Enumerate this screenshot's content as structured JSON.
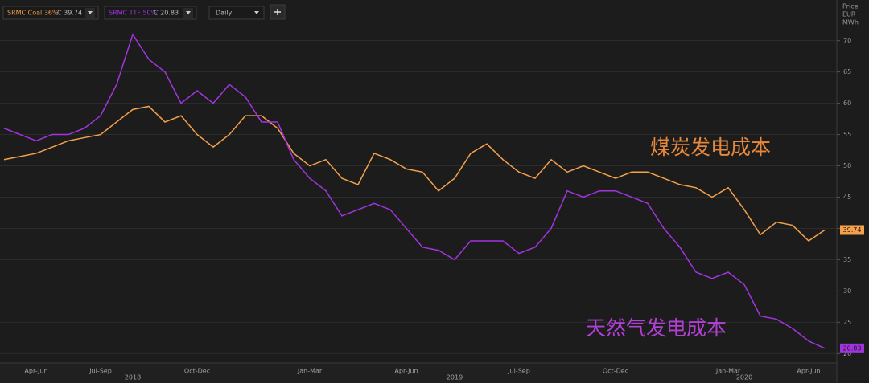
{
  "chart_data": {
    "type": "line",
    "interval": "Daily",
    "y_label_lines": [
      "Price",
      "EUR",
      "MWh"
    ],
    "annotations": [
      {
        "text": "煤炭发电成本",
        "color": "#e8883a"
      },
      {
        "text": "天然气发电成本",
        "color": "#b23fd6"
      }
    ],
    "categories": [
      null,
      null,
      "Apr-Jun",
      null,
      null,
      null,
      "Jul-Sep",
      null,
      null,
      null,
      null,
      null,
      "Oct-Dec",
      null,
      null,
      null,
      null,
      null,
      null,
      "Jan-Mar",
      null,
      null,
      null,
      null,
      null,
      "Apr-Jun",
      null,
      null,
      null,
      null,
      null,
      null,
      "Jul-Sep",
      null,
      null,
      null,
      null,
      null,
      "Oct-Dec",
      null,
      null,
      null,
      null,
      null,
      null,
      "Jan-Mar",
      null,
      null,
      null,
      null,
      "Apr-Jun",
      null
    ],
    "years": [
      null,
      null,
      null,
      null,
      null,
      null,
      null,
      null,
      "2018",
      null,
      null,
      null,
      null,
      null,
      null,
      null,
      null,
      null,
      null,
      null,
      null,
      null,
      null,
      null,
      null,
      null,
      null,
      null,
      "2019",
      null,
      null,
      null,
      null,
      null,
      null,
      null,
      null,
      null,
      null,
      null,
      null,
      null,
      null,
      null,
      null,
      null,
      "2020",
      null,
      null,
      null,
      null,
      null
    ],
    "series": [
      {
        "name": "SRMC Coal 36%",
        "close": "C 39.74",
        "color": "#f5a04a",
        "values": [
          51,
          51.5,
          52,
          53,
          54,
          54.5,
          55,
          57,
          59,
          59.5,
          57,
          58,
          55,
          53,
          55,
          58,
          58,
          56,
          52,
          50,
          51,
          48,
          47,
          52,
          51,
          49.5,
          49,
          46,
          48,
          52,
          53.5,
          51,
          49,
          48,
          51,
          49,
          50,
          49,
          48,
          49,
          49,
          48,
          47,
          46.5,
          45,
          46.5,
          43,
          39,
          41,
          40.5,
          38,
          39.74
        ]
      },
      {
        "name": "SRMC TTF 50%",
        "close": "C 20.83",
        "color": "#a234e0",
        "values": [
          56,
          55,
          54,
          55,
          55,
          56,
          58,
          63,
          71,
          67,
          65,
          60,
          62,
          60,
          63,
          61,
          57,
          57,
          51,
          48,
          46,
          42,
          43,
          44,
          43,
          40,
          37,
          36.5,
          35,
          38,
          38,
          38,
          36,
          37,
          40,
          46,
          45,
          46,
          46,
          45,
          44,
          40,
          37,
          33,
          32,
          33,
          31,
          26,
          25.5,
          24,
          22,
          20.83
        ]
      }
    ],
    "ylim": [
      18.5,
      76.5
    ],
    "yticks": [
      20,
      25,
      30,
      35,
      40,
      45,
      50,
      55,
      60,
      65,
      70
    ],
    "grid": true
  }
}
